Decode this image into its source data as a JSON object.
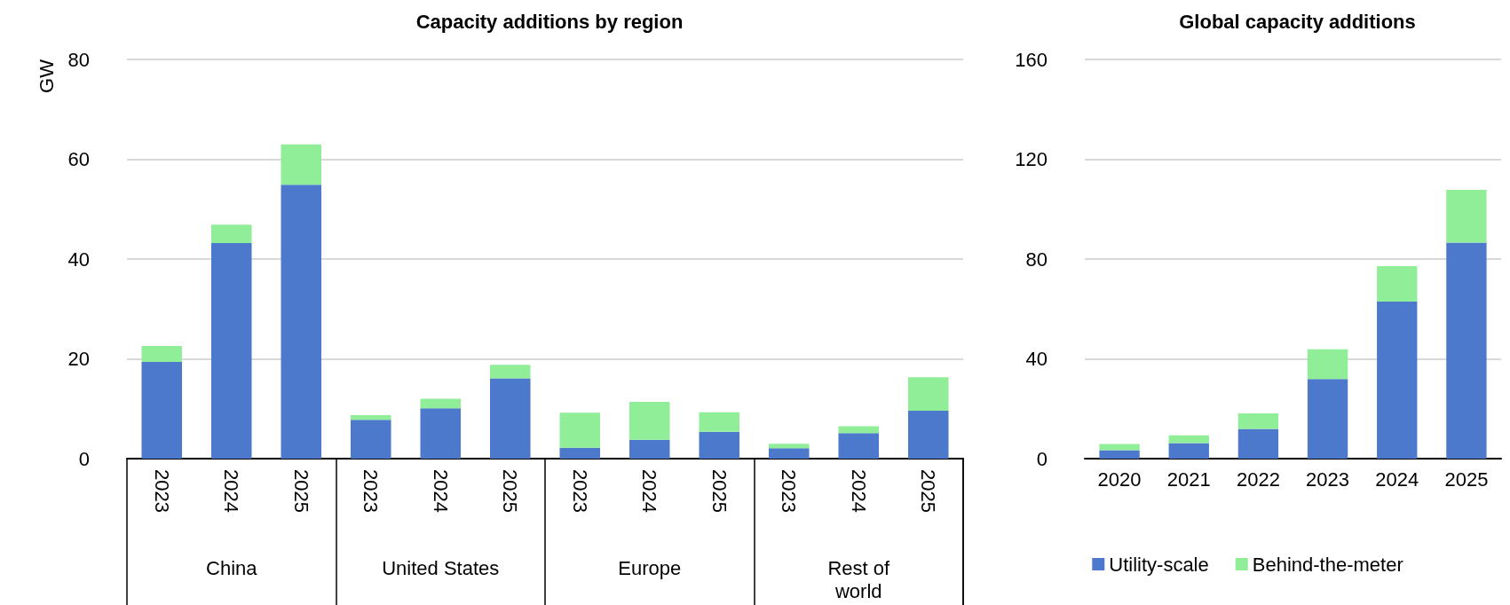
{
  "chart_data": [
    {
      "type": "bar",
      "title": "Capacity additions by region",
      "ylabel": "GW",
      "stacked": true,
      "categories": [
        "2023",
        "2024",
        "2025",
        "2023",
        "2024",
        "2025",
        "2023",
        "2024",
        "2025",
        "2023",
        "2024",
        "2025"
      ],
      "annotations": [
        "China",
        "United States",
        "Europe",
        "Rest of\nworld"
      ],
      "series": [
        {
          "color": "#4d79cc",
          "values": [
            19.4,
            43.2,
            54.9,
            7.8,
            10.1,
            16.1,
            2.2,
            3.8,
            5.4,
            2.1,
            5.1,
            9.6
          ]
        },
        {
          "color": "#90ee98",
          "values": [
            3.2,
            3.7,
            8.1,
            0.9,
            1.9,
            2.7,
            7.0,
            7.6,
            3.9,
            0.9,
            1.4,
            6.7
          ]
        }
      ],
      "ylim": [
        0,
        80
      ],
      "yticks": [
        0,
        20,
        40,
        60,
        80
      ],
      "grid": "y",
      "legend": false
    },
    {
      "type": "bar",
      "title": "Global capacity additions",
      "stacked": true,
      "categories": [
        "2020",
        "2021",
        "2022",
        "2023",
        "2024",
        "2025"
      ],
      "series": [
        {
          "name": "Utility-scale",
          "color": "#4d79cc",
          "values": [
            3.4,
            6.2,
            11.9,
            31.9,
            62.9,
            86.6
          ]
        },
        {
          "name": "Behind-the-meter",
          "color": "#90ee98",
          "values": [
            2.5,
            3.1,
            6.2,
            11.9,
            14.3,
            21.1
          ]
        }
      ],
      "ylim": [
        0,
        160
      ],
      "yticks": [
        0,
        40,
        80,
        120,
        160
      ],
      "grid": "y",
      "legend": "bottom"
    }
  ]
}
